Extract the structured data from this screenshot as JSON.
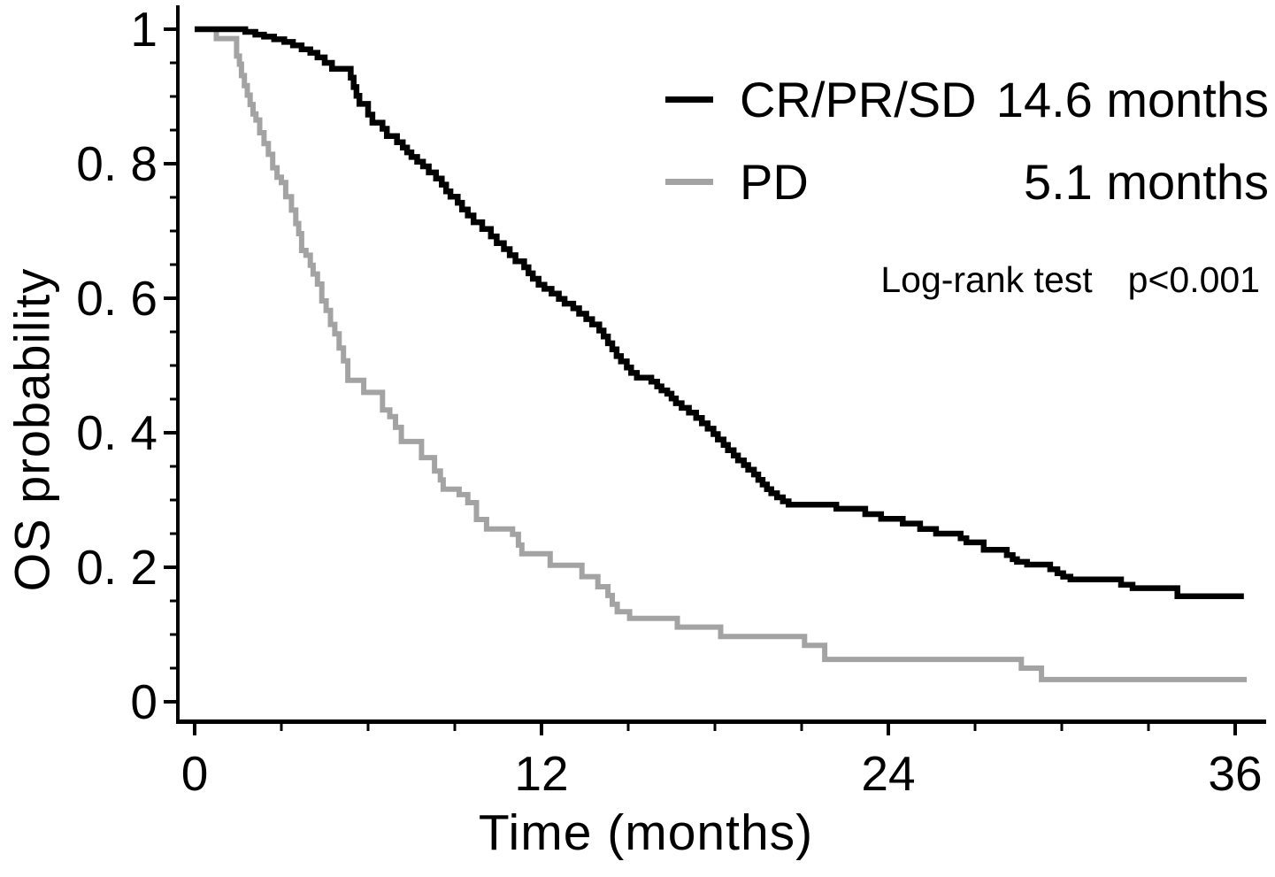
{
  "chart_data": {
    "type": "line",
    "subtype": "kaplan-meier-step",
    "title": "",
    "xlabel": "Time (months)",
    "ylabel": "OS probability",
    "xlim": [
      0,
      36
    ],
    "ylim": [
      0,
      1
    ],
    "grid": false,
    "legend_position": "top-right",
    "x_ticks": {
      "major": [
        {
          "t": 0,
          "label": "0"
        },
        {
          "t": 12,
          "label": "12"
        },
        {
          "t": 24,
          "label": "24"
        },
        {
          "t": 36,
          "label": "36"
        }
      ],
      "minor_step": 3
    },
    "y_ticks": {
      "major": [
        {
          "v": 1,
          "label": "1"
        },
        {
          "v": 0.8,
          "label": "0. 8"
        },
        {
          "v": 0.6,
          "label": "0. 6"
        },
        {
          "v": 0.4,
          "label": "0. 4"
        },
        {
          "v": 0.2,
          "label": "0. 2"
        },
        {
          "v": 0,
          "label": "0"
        }
      ],
      "minor_step": 0.05
    },
    "series": [
      {
        "name": "CR/PR/SD",
        "median_label": "14.6 months",
        "median_months": 14.6,
        "color": "#000000",
        "stroke_width": 6.5,
        "start": [
          0,
          1.0
        ],
        "t_end": 36.3,
        "points": [
          [
            1.75,
            0.996
          ],
          [
            2.1,
            0.992
          ],
          [
            2.4,
            0.989
          ],
          [
            2.75,
            0.985
          ],
          [
            3.1,
            0.981
          ],
          [
            3.4,
            0.976
          ],
          [
            3.7,
            0.97
          ],
          [
            4.0,
            0.965
          ],
          [
            4.25,
            0.958
          ],
          [
            4.5,
            0.95
          ],
          [
            4.75,
            0.941
          ],
          [
            5.4,
            0.928
          ],
          [
            5.5,
            0.914
          ],
          [
            5.6,
            0.901
          ],
          [
            5.7,
            0.889
          ],
          [
            6.0,
            0.873
          ],
          [
            6.15,
            0.861
          ],
          [
            6.5,
            0.852
          ],
          [
            6.65,
            0.841
          ],
          [
            7.0,
            0.832
          ],
          [
            7.2,
            0.824
          ],
          [
            7.35,
            0.817
          ],
          [
            7.5,
            0.81
          ],
          [
            7.7,
            0.803
          ],
          [
            7.9,
            0.796
          ],
          [
            8.1,
            0.787
          ],
          [
            8.35,
            0.778
          ],
          [
            8.55,
            0.769
          ],
          [
            8.7,
            0.759
          ],
          [
            8.85,
            0.751
          ],
          [
            9.1,
            0.742
          ],
          [
            9.25,
            0.732
          ],
          [
            9.45,
            0.723
          ],
          [
            9.65,
            0.713
          ],
          [
            9.95,
            0.703
          ],
          [
            10.25,
            0.692
          ],
          [
            10.45,
            0.682
          ],
          [
            10.7,
            0.673
          ],
          [
            10.9,
            0.664
          ],
          [
            11.1,
            0.655
          ],
          [
            11.4,
            0.646
          ],
          [
            11.55,
            0.637
          ],
          [
            11.7,
            0.629
          ],
          [
            11.9,
            0.62
          ],
          [
            12.1,
            0.614
          ],
          [
            12.35,
            0.607
          ],
          [
            12.6,
            0.599
          ],
          [
            12.8,
            0.592
          ],
          [
            13.1,
            0.585
          ],
          [
            13.3,
            0.577
          ],
          [
            13.55,
            0.569
          ],
          [
            13.75,
            0.561
          ],
          [
            14.0,
            0.552
          ],
          [
            14.15,
            0.543
          ],
          [
            14.3,
            0.533
          ],
          [
            14.45,
            0.524
          ],
          [
            14.6,
            0.514
          ],
          [
            14.75,
            0.506
          ],
          [
            14.95,
            0.497
          ],
          [
            15.1,
            0.489
          ],
          [
            15.3,
            0.482
          ],
          [
            15.8,
            0.476
          ],
          [
            16.0,
            0.469
          ],
          [
            16.15,
            0.463
          ],
          [
            16.35,
            0.458
          ],
          [
            16.5,
            0.451
          ],
          [
            16.65,
            0.444
          ],
          [
            16.85,
            0.437
          ],
          [
            17.1,
            0.43
          ],
          [
            17.35,
            0.422
          ],
          [
            17.55,
            0.414
          ],
          [
            17.75,
            0.406
          ],
          [
            17.95,
            0.398
          ],
          [
            18.1,
            0.39
          ],
          [
            18.3,
            0.382
          ],
          [
            18.45,
            0.374
          ],
          [
            18.65,
            0.366
          ],
          [
            18.8,
            0.359
          ],
          [
            19.0,
            0.352
          ],
          [
            19.15,
            0.345
          ],
          [
            19.35,
            0.338
          ],
          [
            19.5,
            0.33
          ],
          [
            19.65,
            0.323
          ],
          [
            19.8,
            0.316
          ],
          [
            19.95,
            0.31
          ],
          [
            20.15,
            0.304
          ],
          [
            20.35,
            0.298
          ],
          [
            20.55,
            0.293
          ],
          [
            22.2,
            0.287
          ],
          [
            23.2,
            0.279
          ],
          [
            23.75,
            0.272
          ],
          [
            24.5,
            0.265
          ],
          [
            25.1,
            0.257
          ],
          [
            25.65,
            0.25
          ],
          [
            26.5,
            0.243
          ],
          [
            26.7,
            0.237
          ],
          [
            27.3,
            0.226
          ],
          [
            28.1,
            0.218
          ],
          [
            28.3,
            0.212
          ],
          [
            28.45,
            0.208
          ],
          [
            28.8,
            0.204
          ],
          [
            29.6,
            0.197
          ],
          [
            29.85,
            0.191
          ],
          [
            30.05,
            0.186
          ],
          [
            30.3,
            0.182
          ],
          [
            32.05,
            0.174
          ],
          [
            32.45,
            0.169
          ],
          [
            34.0,
            0.157
          ]
        ]
      },
      {
        "name": "PD",
        "median_label": "5.1 months",
        "median_months": 5.1,
        "color": "#a3a3a3",
        "stroke_width": 6,
        "start": [
          0,
          1.0
        ],
        "t_end": 36.4,
        "points": [
          [
            0.75,
            0.986
          ],
          [
            1.45,
            0.96
          ],
          [
            1.55,
            0.948
          ],
          [
            1.62,
            0.931
          ],
          [
            1.72,
            0.916
          ],
          [
            1.82,
            0.902
          ],
          [
            1.92,
            0.888
          ],
          [
            2.02,
            0.874
          ],
          [
            2.12,
            0.865
          ],
          [
            2.25,
            0.846
          ],
          [
            2.4,
            0.83
          ],
          [
            2.55,
            0.814
          ],
          [
            2.7,
            0.794
          ],
          [
            2.85,
            0.78
          ],
          [
            3.0,
            0.772
          ],
          [
            3.15,
            0.751
          ],
          [
            3.35,
            0.731
          ],
          [
            3.5,
            0.711
          ],
          [
            3.6,
            0.696
          ],
          [
            3.7,
            0.671
          ],
          [
            3.85,
            0.664
          ],
          [
            4.0,
            0.649
          ],
          [
            4.1,
            0.636
          ],
          [
            4.25,
            0.621
          ],
          [
            4.4,
            0.596
          ],
          [
            4.55,
            0.582
          ],
          [
            4.7,
            0.561
          ],
          [
            4.85,
            0.547
          ],
          [
            5.0,
            0.526
          ],
          [
            5.15,
            0.507
          ],
          [
            5.3,
            0.478
          ],
          [
            5.85,
            0.46
          ],
          [
            6.5,
            0.434
          ],
          [
            6.75,
            0.424
          ],
          [
            6.95,
            0.408
          ],
          [
            7.15,
            0.387
          ],
          [
            7.85,
            0.363
          ],
          [
            8.3,
            0.343
          ],
          [
            8.5,
            0.33
          ],
          [
            8.6,
            0.316
          ],
          [
            9.15,
            0.308
          ],
          [
            9.45,
            0.296
          ],
          [
            9.75,
            0.271
          ],
          [
            10.1,
            0.257
          ],
          [
            11.0,
            0.249
          ],
          [
            11.2,
            0.233
          ],
          [
            11.32,
            0.22
          ],
          [
            12.3,
            0.203
          ],
          [
            13.4,
            0.186
          ],
          [
            13.95,
            0.171
          ],
          [
            14.3,
            0.158
          ],
          [
            14.45,
            0.145
          ],
          [
            14.62,
            0.134
          ],
          [
            15.05,
            0.124
          ],
          [
            16.7,
            0.111
          ],
          [
            18.2,
            0.097
          ],
          [
            21.1,
            0.084
          ],
          [
            21.8,
            0.063
          ],
          [
            28.6,
            0.05
          ],
          [
            29.3,
            0.033
          ]
        ]
      }
    ],
    "annotation": {
      "test_label": "Log-rank test",
      "p_value": "p<0.001"
    }
  },
  "colors": {
    "axis": "#000000",
    "text": "#000000",
    "background": "#ffffff",
    "series_black": "#000000",
    "series_gray": "#a3a3a3"
  }
}
